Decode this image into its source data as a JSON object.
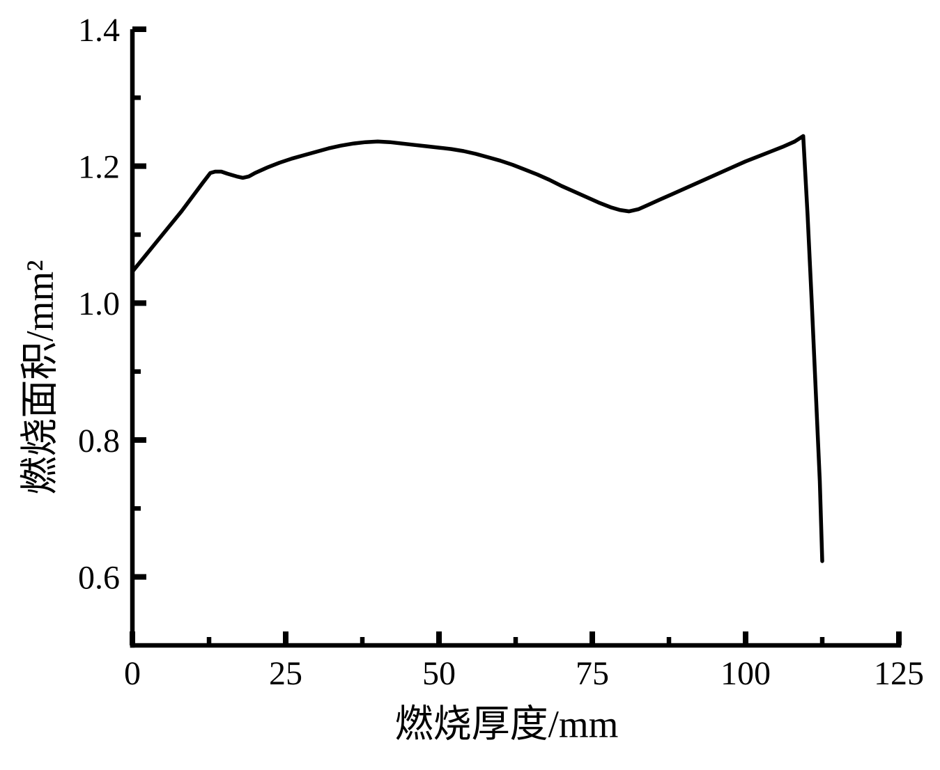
{
  "chart_data": {
    "type": "line",
    "title": "",
    "xlabel": "燃烧厚度/mm",
    "ylabel": "燃烧面积/mm²",
    "xlim": [
      0,
      125
    ],
    "ylim": [
      0.5,
      1.4
    ],
    "x_major_ticks": [
      0,
      25,
      50,
      75,
      100,
      125
    ],
    "x_tick_labels": [
      "0",
      "25",
      "50",
      "75",
      "100",
      "125"
    ],
    "x_minor_ticks": [
      12.5,
      37.5,
      62.5,
      87.5,
      112.5
    ],
    "y_major_ticks": [
      0.6,
      0.8,
      1.0,
      1.2,
      1.4
    ],
    "y_tick_labels": [
      "0.6",
      "0.8",
      "1.0",
      "1.2",
      "1.4"
    ],
    "y_minor_ticks": [
      0.7,
      0.9,
      1.1,
      1.3
    ],
    "grid": false,
    "legend": null,
    "background_color": "#ffffff",
    "axis_color": "#000000",
    "line_color": "#000000",
    "series": [
      {
        "name": "燃烧面积",
        "points": [
          [
            0,
            1.046
          ],
          [
            2,
            1.068
          ],
          [
            4,
            1.09
          ],
          [
            6,
            1.112
          ],
          [
            8,
            1.134
          ],
          [
            10,
            1.158
          ],
          [
            11.5,
            1.176
          ],
          [
            12.7,
            1.19
          ],
          [
            13.5,
            1.192
          ],
          [
            14.5,
            1.192
          ],
          [
            15.5,
            1.189
          ],
          [
            17,
            1.185
          ],
          [
            18,
            1.183
          ],
          [
            19,
            1.185
          ],
          [
            20,
            1.19
          ],
          [
            22,
            1.198
          ],
          [
            24,
            1.205
          ],
          [
            26,
            1.211
          ],
          [
            28,
            1.216
          ],
          [
            30,
            1.221
          ],
          [
            32,
            1.226
          ],
          [
            34,
            1.23
          ],
          [
            36,
            1.233
          ],
          [
            38,
            1.235
          ],
          [
            40,
            1.236
          ],
          [
            42,
            1.235
          ],
          [
            44,
            1.233
          ],
          [
            46,
            1.231
          ],
          [
            48,
            1.229
          ],
          [
            50,
            1.227
          ],
          [
            52,
            1.225
          ],
          [
            54,
            1.222
          ],
          [
            56,
            1.218
          ],
          [
            58,
            1.213
          ],
          [
            60,
            1.208
          ],
          [
            62,
            1.202
          ],
          [
            64,
            1.195
          ],
          [
            66,
            1.188
          ],
          [
            68,
            1.18
          ],
          [
            70,
            1.171
          ],
          [
            72,
            1.163
          ],
          [
            74,
            1.155
          ],
          [
            76,
            1.147
          ],
          [
            78,
            1.14
          ],
          [
            79.5,
            1.136
          ],
          [
            81,
            1.134
          ],
          [
            82.5,
            1.137
          ],
          [
            84,
            1.143
          ],
          [
            86,
            1.151
          ],
          [
            88,
            1.159
          ],
          [
            90,
            1.167
          ],
          [
            92,
            1.175
          ],
          [
            94,
            1.183
          ],
          [
            96,
            1.191
          ],
          [
            98,
            1.199
          ],
          [
            100,
            1.207
          ],
          [
            102,
            1.214
          ],
          [
            104,
            1.221
          ],
          [
            106,
            1.228
          ],
          [
            108,
            1.236
          ],
          [
            109.4,
            1.244
          ],
          [
            110.1,
            1.13
          ],
          [
            110.8,
            1.0
          ],
          [
            111.5,
            0.86
          ],
          [
            112.1,
            0.74
          ],
          [
            112.5,
            0.623
          ]
        ]
      }
    ]
  }
}
